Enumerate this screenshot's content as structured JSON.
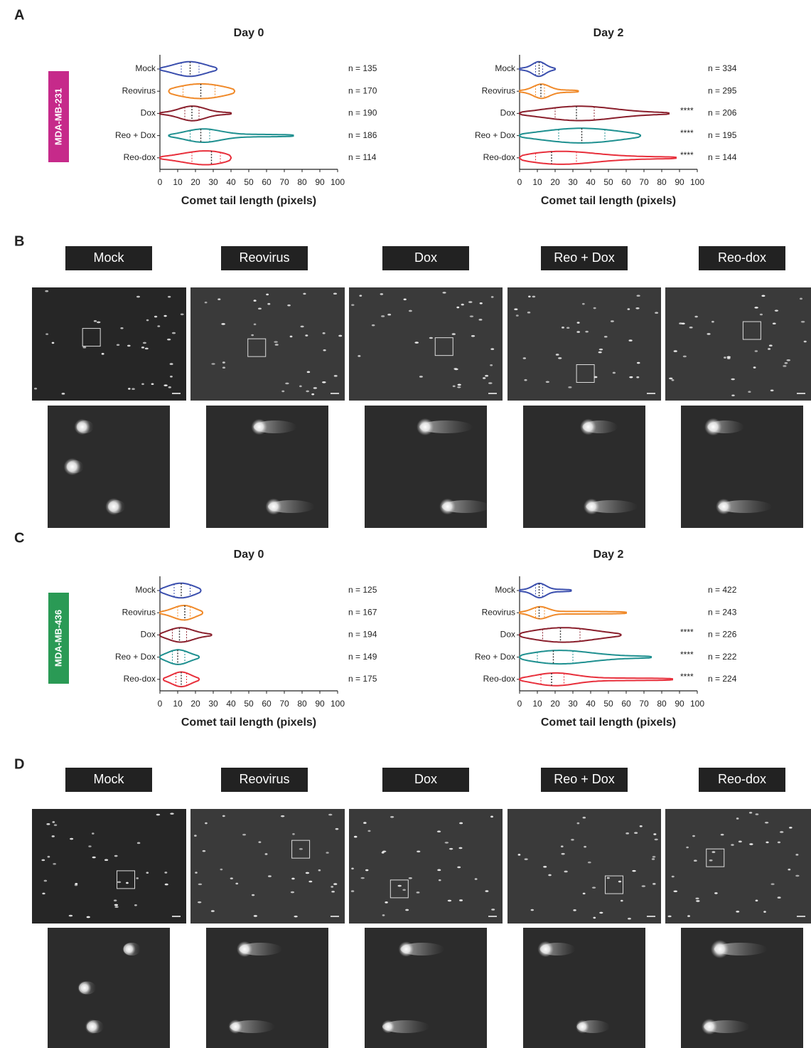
{
  "panel_letters": [
    "A",
    "B",
    "C",
    "D"
  ],
  "cell_lines": [
    "MDA-MB-231",
    "MDA-MB-436"
  ],
  "panel_B_labels": [
    "Mock",
    "Reovirus",
    "Dox",
    "Reo + Dox",
    "Reo-dox"
  ],
  "panel_D_labels": [
    "Mock",
    "Reovirus",
    "Dox",
    "Reo + Dox",
    "Reo-dox"
  ],
  "chart_data": [
    {
      "type": "violin",
      "title": "Day 0",
      "xlabel": "Comet tail length (pixels)",
      "categories": [
        "Mock",
        "Reovirus",
        "Dox",
        "Reo + Dox",
        "Reo-dox"
      ],
      "colors": [
        "#3b4fae",
        "#f08a2a",
        "#8a1f2c",
        "#1f9090",
        "#e8303c"
      ],
      "stats": [
        [
          0,
          12,
          17,
          22,
          32
        ],
        [
          5,
          13,
          23,
          31,
          42
        ],
        [
          0,
          14,
          18,
          22,
          40
        ],
        [
          5,
          17,
          23,
          28,
          75
        ],
        [
          0,
          18,
          29,
          34,
          40
        ]
      ],
      "n_labels": [
        "n = 135",
        "n = 170",
        "n = 190",
        "n = 186",
        "n = 114"
      ],
      "significance": [
        null,
        null,
        null,
        null,
        null
      ],
      "xlim": [
        0,
        100
      ],
      "xticks": [
        0,
        10,
        20,
        30,
        40,
        50,
        60,
        70,
        80,
        90,
        100
      ]
    },
    {
      "type": "violin",
      "title": "Day 2",
      "xlabel": "Comet tail length (pixels)",
      "categories": [
        "Mock",
        "Reovirus",
        "Dox",
        "Reo + Dox",
        "Reo-dox"
      ],
      "colors": [
        "#3b4fae",
        "#f08a2a",
        "#8a1f2c",
        "#1f9090",
        "#e8303c"
      ],
      "stats": [
        [
          0,
          9,
          11,
          13,
          20
        ],
        [
          0,
          9,
          12,
          14,
          33
        ],
        [
          0,
          20,
          32,
          42,
          84
        ],
        [
          0,
          22,
          35,
          48,
          68
        ],
        [
          0,
          9,
          18,
          32,
          88
        ]
      ],
      "n_labels": [
        "n = 334",
        "n = 295",
        "n = 206",
        "n = 195",
        "n = 144"
      ],
      "significance": [
        null,
        null,
        "****",
        "****",
        "****"
      ],
      "xlim": [
        0,
        100
      ],
      "xticks": [
        0,
        10,
        20,
        30,
        40,
        50,
        60,
        70,
        80,
        90,
        100
      ]
    },
    {
      "type": "violin",
      "title": "Day 0",
      "xlabel": "Comet tail length (pixels)",
      "categories": [
        "Mock",
        "Reovirus",
        "Dox",
        "Reo + Dox",
        "Reo-dox"
      ],
      "colors": [
        "#3b4fae",
        "#f08a2a",
        "#8a1f2c",
        "#1f9090",
        "#e8303c"
      ],
      "stats": [
        [
          0,
          8,
          12,
          17,
          23
        ],
        [
          0,
          10,
          14,
          17,
          24
        ],
        [
          0,
          7,
          11,
          15,
          29
        ],
        [
          0,
          7,
          10,
          14,
          22
        ],
        [
          2,
          9,
          12,
          15,
          22
        ]
      ],
      "n_labels": [
        "n = 125",
        "n = 167",
        "n = 194",
        "n = 149",
        "n = 175"
      ],
      "significance": [
        null,
        null,
        null,
        null,
        null
      ],
      "xlim": [
        0,
        100
      ],
      "xticks": [
        0,
        10,
        20,
        30,
        40,
        50,
        60,
        70,
        80,
        90,
        100
      ]
    },
    {
      "type": "violin",
      "title": "Day 2",
      "xlabel": "Comet tail length (pixels)",
      "categories": [
        "Mock",
        "Reovirus",
        "Dox",
        "Reo + Dox",
        "Reo-dox"
      ],
      "colors": [
        "#3b4fae",
        "#f08a2a",
        "#8a1f2c",
        "#1f9090",
        "#e8303c"
      ],
      "stats": [
        [
          0,
          9,
          11,
          13,
          29
        ],
        [
          0,
          9,
          11,
          14,
          60
        ],
        [
          0,
          13,
          23,
          34,
          57
        ],
        [
          0,
          10,
          19,
          30,
          74
        ],
        [
          0,
          12,
          18,
          25,
          86
        ]
      ],
      "n_labels": [
        "n = 422",
        "n = 243",
        "n = 226",
        "n = 222",
        "n = 224"
      ],
      "significance": [
        null,
        null,
        "****",
        "****",
        "****"
      ],
      "xlim": [
        0,
        100
      ],
      "xticks": [
        0,
        10,
        20,
        30,
        40,
        50,
        60,
        70,
        80,
        90,
        100
      ]
    }
  ]
}
